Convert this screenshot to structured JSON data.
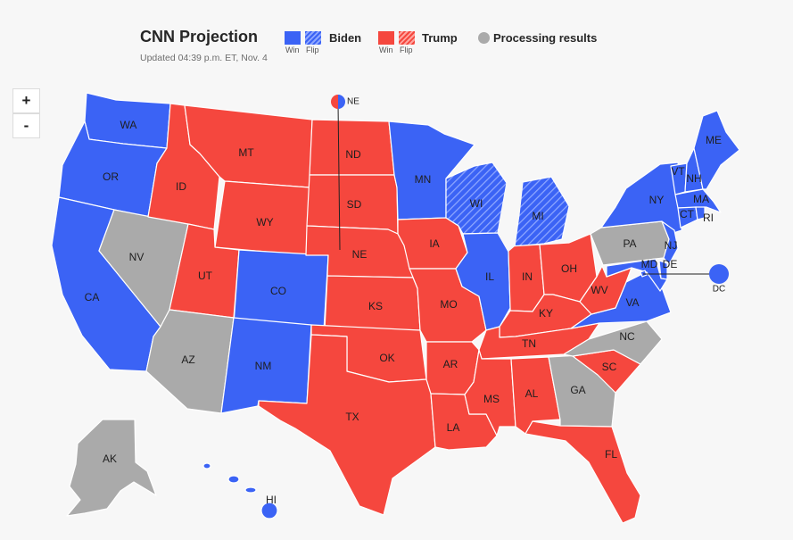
{
  "header": {
    "title": "CNN Projection",
    "updated": "Updated 04:39 p.m. ET, Nov. 4"
  },
  "legend": {
    "biden": {
      "label": "Biden",
      "win": "Win",
      "flip": "Flip",
      "color": "#3b63f5"
    },
    "trump": {
      "label": "Trump",
      "win": "Win",
      "flip": "Flip",
      "color": "#f5473e"
    },
    "processing": {
      "label": "Processing results",
      "color": "#aaaaaa"
    }
  },
  "zoom": {
    "in_label": "+",
    "out_label": "-"
  },
  "colors": {
    "biden": "#3b63f5",
    "trump": "#f5473e",
    "processing": "#aaaaaa"
  },
  "states": {
    "WA": {
      "label": "WA",
      "status": "biden"
    },
    "OR": {
      "label": "OR",
      "status": "biden"
    },
    "CA": {
      "label": "CA",
      "status": "biden"
    },
    "NV": {
      "label": "NV",
      "status": "processing"
    },
    "ID": {
      "label": "ID",
      "status": "trump"
    },
    "MT": {
      "label": "MT",
      "status": "trump"
    },
    "WY": {
      "label": "WY",
      "status": "trump"
    },
    "UT": {
      "label": "UT",
      "status": "trump"
    },
    "AZ": {
      "label": "AZ",
      "status": "processing"
    },
    "CO": {
      "label": "CO",
      "status": "biden"
    },
    "NM": {
      "label": "NM",
      "status": "biden"
    },
    "ND": {
      "label": "ND",
      "status": "trump"
    },
    "SD": {
      "label": "SD",
      "status": "trump"
    },
    "NE": {
      "label": "NE",
      "status": "trump"
    },
    "KS": {
      "label": "KS",
      "status": "trump"
    },
    "OK": {
      "label": "OK",
      "status": "trump"
    },
    "TX": {
      "label": "TX",
      "status": "trump"
    },
    "MN": {
      "label": "MN",
      "status": "biden"
    },
    "IA": {
      "label": "IA",
      "status": "trump"
    },
    "MO": {
      "label": "MO",
      "status": "trump"
    },
    "AR": {
      "label": "AR",
      "status": "trump"
    },
    "LA": {
      "label": "LA",
      "status": "trump"
    },
    "WI": {
      "label": "WI",
      "status": "biden-flip"
    },
    "IL": {
      "label": "IL",
      "status": "biden"
    },
    "MI": {
      "label": "MI",
      "status": "biden-flip"
    },
    "IN": {
      "label": "IN",
      "status": "trump"
    },
    "OH": {
      "label": "OH",
      "status": "trump"
    },
    "KY": {
      "label": "KY",
      "status": "trump"
    },
    "TN": {
      "label": "TN",
      "status": "trump"
    },
    "MS": {
      "label": "MS",
      "status": "trump"
    },
    "AL": {
      "label": "AL",
      "status": "trump"
    },
    "GA": {
      "label": "GA",
      "status": "processing"
    },
    "FL": {
      "label": "FL",
      "status": "trump"
    },
    "SC": {
      "label": "SC",
      "status": "trump"
    },
    "NC": {
      "label": "NC",
      "status": "processing"
    },
    "VA": {
      "label": "VA",
      "status": "biden"
    },
    "WV": {
      "label": "WV",
      "status": "trump"
    },
    "PA": {
      "label": "PA",
      "status": "processing"
    },
    "NY": {
      "label": "NY",
      "status": "biden"
    },
    "VT": {
      "label": "VT",
      "status": "biden"
    },
    "NH": {
      "label": "NH",
      "status": "biden"
    },
    "ME": {
      "label": "ME",
      "status": "biden"
    },
    "MA": {
      "label": "MA",
      "status": "biden"
    },
    "RI": {
      "label": "RI",
      "status": "biden"
    },
    "CT": {
      "label": "CT",
      "status": "biden"
    },
    "NJ": {
      "label": "NJ",
      "status": "biden"
    },
    "DE": {
      "label": "DE",
      "status": "biden"
    },
    "MD": {
      "label": "MD",
      "status": "biden"
    },
    "DC": {
      "label": "DC",
      "status": "biden"
    },
    "AK": {
      "label": "AK",
      "status": "processing"
    },
    "HI": {
      "label": "HI",
      "status": "biden"
    },
    "NE-district": {
      "label": "NE",
      "status": "split"
    }
  }
}
